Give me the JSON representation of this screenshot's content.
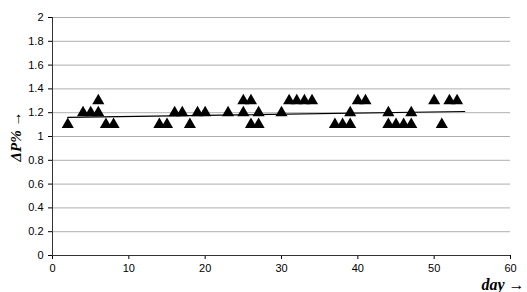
{
  "chart_data": {
    "type": "scatter",
    "x_label": "day",
    "y_label": "ΔP%",
    "x": [
      2,
      4,
      5,
      6,
      6,
      7,
      8,
      14,
      15,
      16,
      17,
      18,
      19,
      20,
      23,
      25,
      25,
      26,
      26,
      27,
      27,
      30,
      31,
      32,
      33,
      34,
      37,
      38,
      39,
      39,
      40,
      41,
      44,
      44,
      45,
      46,
      47,
      47,
      50,
      51,
      52,
      53
    ],
    "values": [
      1.1,
      1.2,
      1.2,
      1.2,
      1.3,
      1.1,
      1.1,
      1.1,
      1.1,
      1.2,
      1.2,
      1.1,
      1.2,
      1.2,
      1.2,
      1.2,
      1.3,
      1.3,
      1.1,
      1.1,
      1.2,
      1.2,
      1.3,
      1.3,
      1.3,
      1.3,
      1.1,
      1.1,
      1.1,
      1.2,
      1.3,
      1.3,
      1.2,
      1.1,
      1.1,
      1.1,
      1.1,
      1.2,
      1.3,
      1.1,
      1.3,
      1.3
    ],
    "color": "#000000",
    "marker": "triangle",
    "trendline": {
      "x": [
        2,
        54
      ],
      "values": [
        1.16,
        1.21
      ],
      "color": "#000000"
    },
    "xlim": [
      0,
      60
    ],
    "xticks": [
      0,
      10,
      20,
      30,
      40,
      50,
      60
    ],
    "ylim": [
      0,
      2
    ],
    "yticks": [
      0,
      0.2,
      0.4,
      0.6,
      0.8,
      1,
      1.2,
      1.4,
      1.6,
      1.8,
      2
    ],
    "grid": true
  }
}
